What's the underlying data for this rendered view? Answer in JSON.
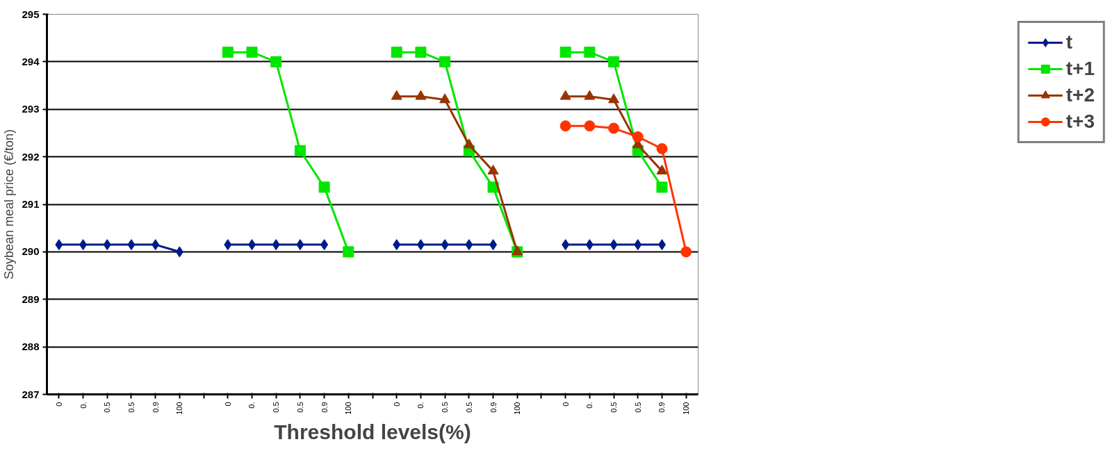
{
  "chart_data": {
    "type": "line",
    "xlabel": "Threshold levels(%)",
    "ylabel": "Soybean meal price (€/ton)",
    "categories": [
      "0",
      "0.",
      "0.5",
      "0.5",
      "0.9",
      "100",
      null,
      "0",
      "0.",
      "0.5",
      "0.5",
      "0.9",
      "100",
      null,
      "0",
      "0.",
      "0.5",
      "0.5",
      "0.9",
      "100",
      null,
      "0",
      "0.",
      "0.5",
      "0.5",
      "0.9",
      "100"
    ],
    "series": [
      {
        "name": "t",
        "color": "#001a8c",
        "marker": "diamond",
        "values": [
          290.15,
          290.15,
          290.15,
          290.15,
          290.15,
          290.0,
          null,
          290.15,
          290.15,
          290.15,
          290.15,
          290.15,
          null,
          null,
          290.15,
          290.15,
          290.15,
          290.15,
          290.15,
          null,
          null,
          290.15,
          290.15,
          290.15,
          290.15,
          290.15,
          null
        ]
      },
      {
        "name": "t+1",
        "color": "#00e600",
        "marker": "square",
        "values": [
          null,
          null,
          null,
          null,
          null,
          null,
          null,
          294.2,
          294.2,
          294.0,
          292.13,
          291.36,
          290.0,
          null,
          294.2,
          294.2,
          294.0,
          292.13,
          291.36,
          290.0,
          null,
          294.2,
          294.2,
          294.0,
          292.13,
          291.36,
          null
        ]
      },
      {
        "name": "t+2",
        "color": "#993300",
        "marker": "triangle",
        "values": [
          null,
          null,
          null,
          null,
          null,
          null,
          null,
          null,
          null,
          null,
          null,
          null,
          null,
          null,
          293.27,
          293.27,
          293.2,
          292.25,
          291.7,
          290.0,
          null,
          293.27,
          293.27,
          293.2,
          292.25,
          291.7,
          null
        ]
      },
      {
        "name": "t+3",
        "color": "#ff3300",
        "marker": "circle",
        "values": [
          null,
          null,
          null,
          null,
          null,
          null,
          null,
          null,
          null,
          null,
          null,
          null,
          null,
          null,
          null,
          null,
          null,
          null,
          null,
          null,
          null,
          292.65,
          292.65,
          292.6,
          292.42,
          292.17,
          290.0
        ]
      }
    ],
    "ylim": [
      287,
      295
    ],
    "yticks": [
      287,
      288,
      289,
      290,
      291,
      292,
      293,
      294,
      295
    ],
    "grid": "y",
    "legend": "right",
    "line_style": "solid"
  }
}
